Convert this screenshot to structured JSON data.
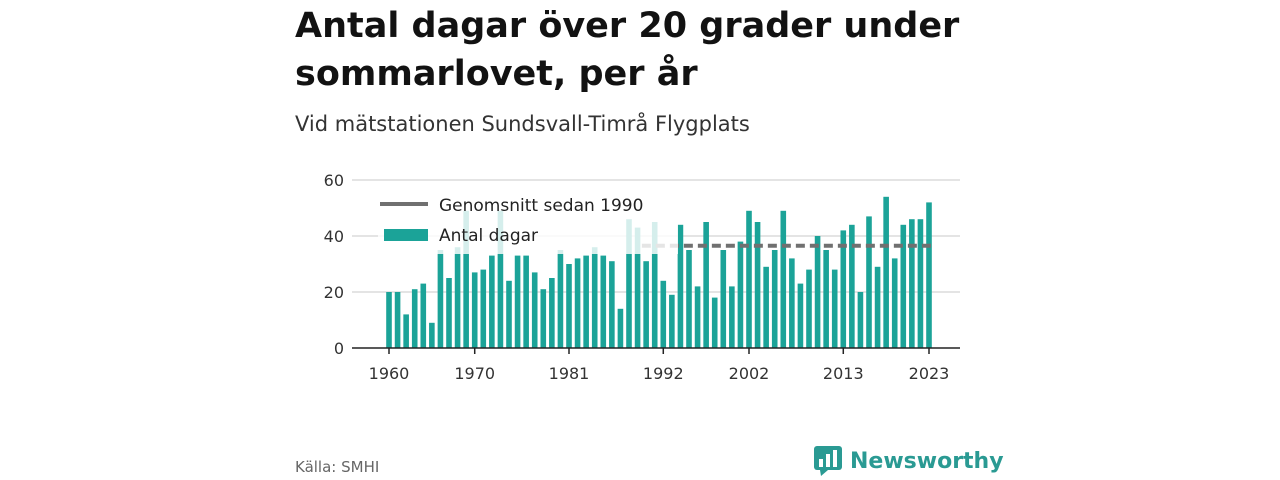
{
  "title": "Antal dagar över 20 grader under sommarlovet, per år",
  "subtitle": "Vid mätstationen Sundsvall-Timrå Flygplats",
  "source": "Källa: SMHI",
  "brand": "Newsworthy",
  "colors": {
    "bar": "#1ba398",
    "average_line": "#707070",
    "brand": "#2a9a93"
  },
  "chart_data": {
    "type": "bar",
    "title": "Antal dagar över 20 grader under sommarlovet, per år",
    "ylim": [
      0,
      60
    ],
    "yticks": [
      0,
      20,
      40,
      60
    ],
    "xticks": [
      1960,
      1970,
      1981,
      1992,
      2002,
      2013,
      2023
    ],
    "grid": true,
    "legend_position": "top-left",
    "legend": [
      "Genomsnitt sedan 1990",
      "Antal dagar"
    ],
    "categories": [
      1960,
      1961,
      1962,
      1963,
      1964,
      1965,
      1966,
      1967,
      1968,
      1969,
      1970,
      1971,
      1972,
      1973,
      1974,
      1975,
      1976,
      1977,
      1978,
      1979,
      1980,
      1981,
      1982,
      1983,
      1984,
      1985,
      1986,
      1987,
      1988,
      1989,
      1990,
      1991,
      1992,
      1993,
      1994,
      1995,
      1996,
      1997,
      1998,
      1999,
      2000,
      2001,
      2002,
      2003,
      2004,
      2005,
      2006,
      2007,
      2008,
      2009,
      2010,
      2011,
      2012,
      2013,
      2014,
      2015,
      2016,
      2017,
      2018,
      2019,
      2020,
      2021,
      2022,
      2023
    ],
    "series": [
      {
        "name": "Antal dagar",
        "values": [
          20,
          20,
          12,
          21,
          23,
          9,
          35,
          25,
          36,
          49,
          27,
          28,
          33,
          49,
          24,
          33,
          33,
          27,
          21,
          25,
          35,
          30,
          32,
          33,
          36,
          33,
          31,
          14,
          46,
          43,
          31,
          45,
          24,
          19,
          44,
          35,
          22,
          45,
          18,
          35,
          22,
          38,
          49,
          45,
          29,
          35,
          49,
          32,
          23,
          28,
          40,
          35,
          28,
          42,
          44,
          20,
          47,
          29,
          54,
          32,
          44,
          46,
          46,
          52
        ]
      },
      {
        "name": "Genomsnitt sedan 1990",
        "type": "line",
        "x_range": [
          1990,
          2023
        ],
        "value": 36.5
      }
    ]
  }
}
